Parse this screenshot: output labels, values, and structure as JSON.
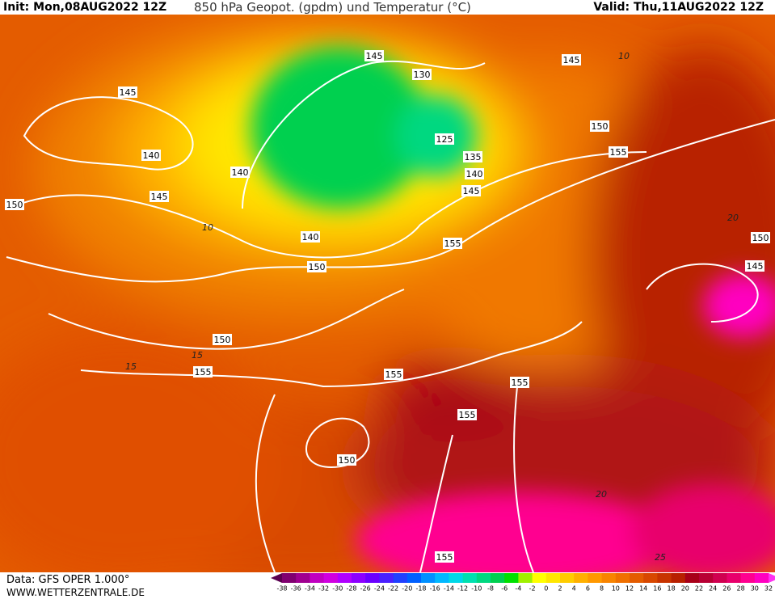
{
  "header": {
    "init": "Init: Mon,08AUG2022 12Z",
    "title": "850 hPa Geopot. (gpdm) und Temperatur (°C)",
    "valid": "Valid: Thu,11AUG2022 12Z"
  },
  "footer": {
    "data": "Data: GFS OPER 1.000°",
    "site": "WWW.WETTERZENTRALE.DE"
  },
  "colorbar": {
    "labels": [
      -38,
      -36,
      -34,
      -32,
      -30,
      -28,
      -26,
      -24,
      -22,
      -20,
      -18,
      -16,
      -14,
      -12,
      -10,
      -8,
      -6,
      -4,
      -2,
      0,
      2,
      4,
      6,
      8,
      10,
      12,
      14,
      16,
      18,
      20,
      22,
      24,
      26,
      28,
      30,
      32
    ],
    "colors": [
      "#5a0050",
      "#800070",
      "#a00090",
      "#c000c0",
      "#d000e0",
      "#b000ff",
      "#8c00ff",
      "#6a00ff",
      "#4a20ff",
      "#2040ff",
      "#0060ff",
      "#0090ff",
      "#00b8ff",
      "#00d8e8",
      "#00e0b0",
      "#00d880",
      "#00d050",
      "#00e000",
      "#a0f000",
      "#ffff00",
      "#ffe600",
      "#ffcc00",
      "#ffb000",
      "#ff9800",
      "#f88400",
      "#f07000",
      "#e45c00",
      "#d84800",
      "#c83400",
      "#b82000",
      "#a80018",
      "#b80034",
      "#d00050",
      "#e8006c",
      "#ff0090",
      "#ff00c0",
      "#ff30f0"
    ]
  },
  "contour_labels": [
    145,
    145,
    145,
    130,
    125,
    140,
    140,
    145,
    150,
    135,
    140,
    145,
    150,
    155,
    155,
    140,
    150,
    150,
    145,
    150,
    155,
    155,
    155,
    155,
    150,
    155
  ],
  "isotherm_labels": [
    10,
    10,
    15,
    15,
    20,
    20,
    25
  ]
}
